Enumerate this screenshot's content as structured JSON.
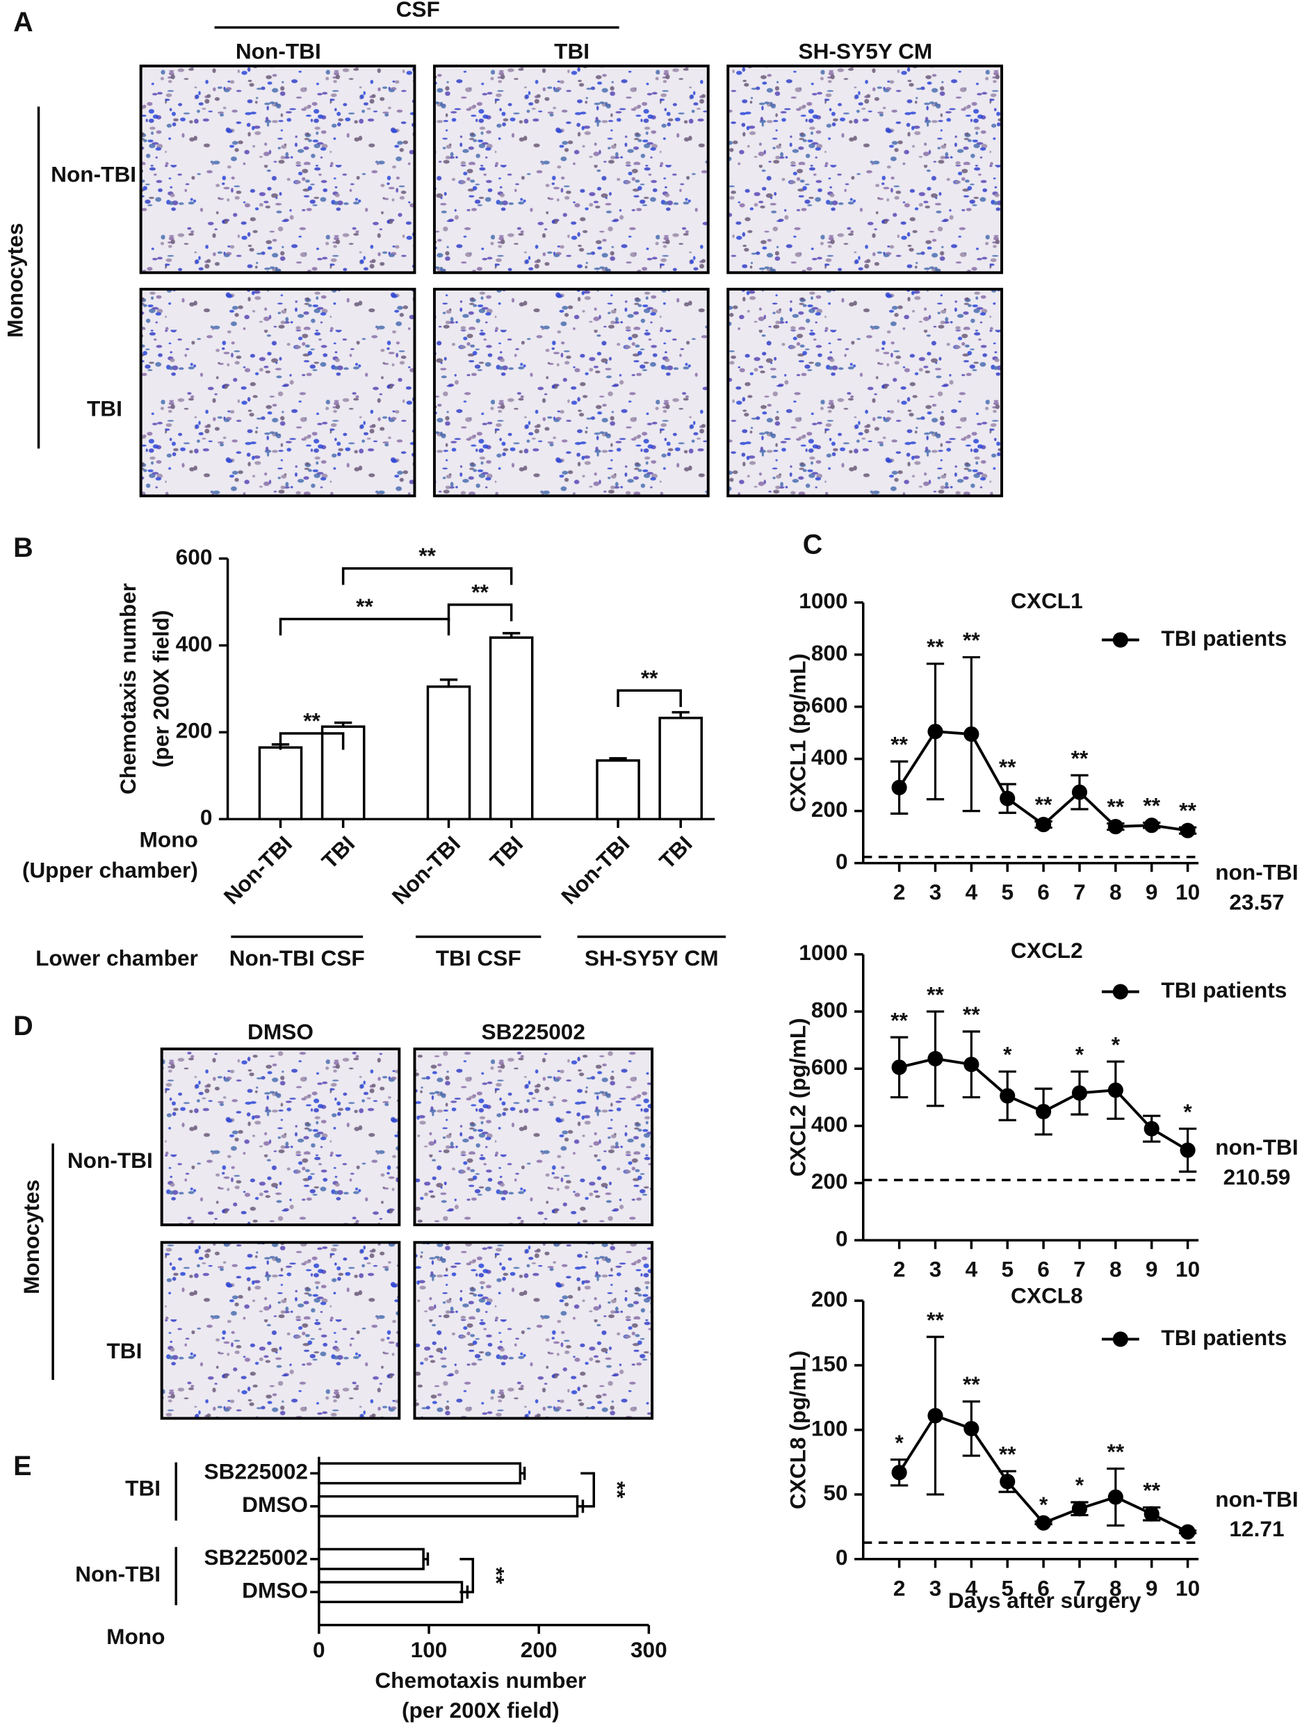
{
  "figure_a": {
    "panel": "A",
    "header": "CSF",
    "columns": [
      "Non-TBI",
      "TBI",
      "SH-SY5Y CM"
    ],
    "row_group": "Monocytes",
    "rows": [
      "Non-TBI",
      "TBI"
    ]
  },
  "figure_d": {
    "panel": "D",
    "columns": [
      "DMSO",
      "SB225002"
    ],
    "row_group": "Monocytes",
    "rows": [
      "Non-TBI",
      "TBI"
    ]
  },
  "chart_data": [
    {
      "type": "bar",
      "panel": "B",
      "y_label": [
        "Chemotaxis number",
        "(per 200X field)"
      ],
      "categories": [
        "Non-TBI",
        "TBI",
        "Non-TBI",
        "TBI",
        "Non-TBI",
        "TBI"
      ],
      "values": [
        165,
        213,
        305,
        418,
        135,
        233
      ],
      "errors": [
        7,
        9,
        16,
        10,
        5,
        13
      ],
      "groups": [
        "Non-TBI CSF",
        "TBI CSF",
        "SH-SY5Y CM"
      ],
      "row_labels": [
        "Mono",
        "(Upper chamber)",
        "Lower chamber"
      ],
      "significance": [
        "**",
        "**",
        "**",
        "**",
        "**"
      ],
      "ylim": [
        0,
        600
      ],
      "yticks": [
        0,
        200,
        400,
        600
      ],
      "color": "#ffffff",
      "edge_color": "#000000"
    },
    {
      "type": "line",
      "panel": "C",
      "title": "CXCL1",
      "y_label": "CXCL1 (pg/mL)",
      "x": [
        2,
        3,
        4,
        5,
        6,
        7,
        8,
        9,
        10
      ],
      "series": [
        {
          "name": "TBI patients",
          "color": "#000000",
          "values": [
            290,
            505,
            495,
            248,
            148,
            272,
            140,
            145,
            125
          ],
          "errors": [
            100,
            260,
            295,
            55,
            12,
            65,
            12,
            10,
            12
          ],
          "significance": [
            "**",
            "**",
            "**",
            "**",
            "**",
            "**",
            "**",
            "**",
            "**"
          ]
        }
      ],
      "reference": {
        "label": "non-TBI",
        "value": 23.57
      },
      "xlim": [
        1,
        10.3
      ],
      "xticks": [
        2,
        3,
        4,
        5,
        6,
        7,
        8,
        9,
        10
      ],
      "ylim": [
        0,
        1000
      ],
      "yticks": [
        0,
        200,
        400,
        600,
        800,
        1000
      ],
      "legend": "upper right"
    },
    {
      "type": "line",
      "title": "CXCL2",
      "y_label": "CXCL2 (pg/mL)",
      "x": [
        2,
        3,
        4,
        5,
        6,
        7,
        8,
        9,
        10
      ],
      "series": [
        {
          "name": "TBI patients",
          "color": "#000000",
          "values": [
            605,
            635,
            615,
            505,
            450,
            515,
            525,
            390,
            315
          ],
          "errors": [
            105,
            165,
            115,
            85,
            80,
            75,
            100,
            45,
            75
          ],
          "significance": [
            "**",
            "**",
            "**",
            "*",
            null,
            "*",
            "*",
            null,
            "*"
          ]
        }
      ],
      "reference": {
        "label": "non-TBI",
        "value": 210.59
      },
      "xlim": [
        1,
        10.3
      ],
      "xticks": [
        2,
        3,
        4,
        5,
        6,
        7,
        8,
        9,
        10
      ],
      "ylim": [
        0,
        1000
      ],
      "yticks": [
        0,
        200,
        400,
        600,
        800,
        1000
      ],
      "legend": "upper right"
    },
    {
      "type": "line",
      "title": "CXCL8",
      "y_label": "CXCL8 (pg/mL)",
      "x_label": "Days after surgery",
      "x": [
        2,
        3,
        4,
        5,
        6,
        7,
        8,
        9,
        10
      ],
      "series": [
        {
          "name": "TBI patients",
          "color": "#000000",
          "values": [
            67,
            111,
            101,
            60,
            28,
            39,
            48,
            35,
            21
          ],
          "errors": [
            10,
            61,
            21,
            8,
            1,
            5,
            22,
            5,
            1
          ],
          "significance": [
            "*",
            "**",
            "**",
            "**",
            "*",
            "*",
            "**",
            "**",
            null
          ]
        }
      ],
      "reference": {
        "label": "non-TBI",
        "value": 12.71
      },
      "xlim": [
        1,
        10.3
      ],
      "xticks": [
        2,
        3,
        4,
        5,
        6,
        7,
        8,
        9,
        10
      ],
      "ylim": [
        0,
        200
      ],
      "yticks": [
        0,
        50,
        100,
        150,
        200
      ],
      "legend": "upper right"
    },
    {
      "type": "hbar",
      "panel": "E",
      "categories": [
        "SB225002",
        "DMSO",
        "SB225002",
        "DMSO"
      ],
      "values": [
        183,
        235,
        95,
        130
      ],
      "errors": [
        4,
        5,
        4,
        5
      ],
      "groups": [
        "TBI",
        "Non-TBI"
      ],
      "row_label": "Mono",
      "x_label": [
        "Chemotaxis number",
        "(per 200X field)"
      ],
      "significance": [
        "**",
        "**"
      ],
      "xlim": [
        0,
        300
      ],
      "xticks": [
        0,
        100,
        200,
        300
      ],
      "color": "#ffffff",
      "edge_color": "#000000"
    }
  ]
}
